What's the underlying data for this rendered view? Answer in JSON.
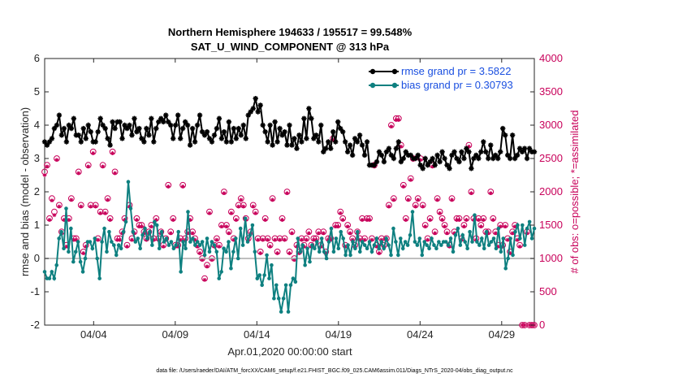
{
  "chart_data": {
    "type": "line",
    "title_line1": "Northern Hemisphere 194633 / 195517 = 99.548%",
    "title_line2": "SAT_U_WIND_COMPONENT @ 313 hPa",
    "xlabel": "Apr.01,2020 00:00:00 start",
    "ylabel_left": "rmse and bias (model - observation)",
    "ylabel_right": "# of obs: o=possible; *=assimilated",
    "xlim": [
      1,
      31
    ],
    "ylim_left": [
      -2,
      6
    ],
    "ylim_right": [
      0,
      4000
    ],
    "x_ticks": [
      {
        "x": 4,
        "label": "04/04"
      },
      {
        "x": 9,
        "label": "04/09"
      },
      {
        "x": 14,
        "label": "04/14"
      },
      {
        "x": 19,
        "label": "04/19"
      },
      {
        "x": 24,
        "label": "04/24"
      },
      {
        "x": 29,
        "label": "04/29"
      }
    ],
    "y_ticks_left": [
      "-2",
      "-1",
      "0",
      "1",
      "2",
      "3",
      "4",
      "5",
      "6"
    ],
    "y_ticks_right": [
      "0",
      "500",
      "1000",
      "1500",
      "2000",
      "2500",
      "3000",
      "3500",
      "4000"
    ],
    "zero_line": 0,
    "legend": {
      "location": "top-right",
      "entries": [
        "rmse grand pr = 3.5822",
        "bias grand pr = 0.30793"
      ]
    },
    "series": [
      {
        "name": "rmse grand pr = 3.5822",
        "color": "#000000",
        "marker": "star",
        "values": [
          3.5,
          3.4,
          3.5,
          3.6,
          3.9,
          4.0,
          4.3,
          3.7,
          3.9,
          3.5,
          4.0,
          3.9,
          4.2,
          3.7,
          3.7,
          3.5,
          3.9,
          3.6,
          4.0,
          3.8,
          3.5,
          3.5,
          3.8,
          4.2,
          4.0,
          3.9,
          3.6,
          3.4,
          4.1,
          3.9,
          4.1,
          4.1,
          3.6,
          4.0,
          3.9,
          4.0,
          3.7,
          4.2,
          3.8,
          3.9,
          3.6,
          3.5,
          3.9,
          3.7,
          4.2,
          3.5,
          3.9,
          4.1,
          4.2,
          4.1,
          4.3,
          4.1,
          4.0,
          3.6,
          4.0,
          4.3,
          3.6,
          3.9,
          4.1,
          4.0,
          3.4,
          3.9,
          3.5,
          4.0,
          4.3,
          3.8,
          3.7,
          3.8,
          3.6,
          3.5,
          3.7,
          3.9,
          4.2,
          3.6,
          3.8,
          3.5,
          4.1,
          3.5,
          3.9,
          3.6,
          3.9,
          3.7,
          4.0,
          3.6,
          4.3,
          4.4,
          4.5,
          4.8,
          4.4,
          4.6,
          4.0,
          3.8,
          3.5,
          4.0,
          3.4,
          4.1,
          3.5,
          3.9,
          3.7,
          3.8,
          3.4,
          4.0,
          3.4,
          3.6,
          3.3,
          3.7,
          3.5,
          4.2,
          3.6,
          4.5,
          4.2,
          3.6,
          3.7,
          3.5,
          4.0,
          3.2,
          3.3,
          3.5,
          3.3,
          3.8,
          3.5,
          4.1,
          3.9,
          3.8,
          3.5,
          3.2,
          3.4,
          3.1,
          3.6,
          3.5,
          3.7,
          3.4,
          3.1,
          3.5,
          2.8,
          2.8,
          2.8,
          2.9,
          3.2,
          3.1,
          2.9,
          3.2,
          3.3,
          3.1,
          3.0,
          3.3,
          3.5,
          2.9,
          3.0,
          3.2,
          3.1,
          3.1,
          3.0,
          3.0,
          3.1,
          2.8,
          2.7,
          3.0,
          2.8,
          2.9,
          3.0,
          2.8,
          3.1,
          2.9,
          3.2,
          3.0,
          2.8,
          2.7,
          3.1,
          3.2,
          3.0,
          2.9,
          3.2,
          3.0,
          3.3,
          3.2,
          2.7,
          3.0,
          3.1,
          3.0,
          3.2,
          3.5,
          3.2,
          3.0,
          3.4,
          3.0,
          3.1,
          3.0,
          3.2,
          3.9,
          3.7,
          3.1,
          3.0,
          3.7,
          3.0,
          3.1,
          3.3,
          3.2,
          3.3,
          3.0,
          3.3,
          3.2,
          3.2
        ]
      },
      {
        "name": "bias grand pr = 0.30793",
        "color": "#0e8080",
        "marker": "dot",
        "values": [
          -0.4,
          -0.6,
          -0.6,
          -0.4,
          -0.6,
          -0.2,
          0.6,
          0.8,
          0.3,
          1.5,
          0.2,
          0.9,
          -0.1,
          0.2,
          0.5,
          -0.1,
          -0.4,
          0.0,
          0.5,
          0.5,
          0.3,
          0.6,
          0.0,
          -0.6,
          0.5,
          0.9,
          0.2,
          0.8,
          0.5,
          0.4,
          0.1,
          0.4,
          0.3,
          0.8,
          1.1,
          2.3,
          1.5,
          0.8,
          0.5,
          0.6,
          0.3,
          0.7,
          0.9,
          0.6,
          0.8,
          0.4,
          1.1,
          1.0,
          0.3,
          0.8,
          0.5,
          0.6,
          0.4,
          0.5,
          0.3,
          0.4,
          0.8,
          -0.4,
          0.5,
          0.3,
          1.4,
          0.5,
          0.6,
          0.4,
          0.5,
          0.4,
          0.5,
          0.1,
          0.6,
          0.2,
          0.5,
          0.4,
          0.2,
          -0.6,
          -0.4,
          0.3,
          0.2,
          0.5,
          -0.3,
          0.2,
          0.6,
          0.0,
          0.9,
          0.4,
          1.2,
          0.5,
          0.7,
          1.0,
          0.2,
          -0.6,
          -0.5,
          -0.8,
          -0.5,
          0.1,
          -0.6,
          -0.2,
          -1.2,
          -0.8,
          -1.2,
          -1.6,
          -1.2,
          -0.8,
          -1.6,
          -0.8,
          -0.6,
          -0.7,
          0.6,
          0.2,
          0.4,
          -0.2,
          0.3,
          -0.1,
          0.4,
          0.3,
          0.5,
          0.2,
          0.6,
          0.2,
          0.0,
          0.5,
          0.9,
          0.2,
          0.6,
          0.3,
          0.8,
          0.6,
          0.1,
          0.4,
          0.1,
          0.5,
          0.3,
          0.8,
          0.2,
          0.5,
          0.4,
          0.3,
          0.5,
          0.2,
          0.4,
          0.6,
          0.3,
          0.5,
          0.3,
          0.6,
          0.4,
          0.1,
          0.9,
          0.5,
          0.1,
          0.6,
          0.3,
          0.5,
          0.4,
          0.7,
          1.4,
          0.5,
          0.4,
          0.6,
          0.1,
          0.5,
          0.4,
          0.3,
          0.6,
          0.4,
          0.3,
          0.5,
          0.4,
          0.5,
          0.5,
          0.4,
          0.6,
          0.2,
          0.7,
          0.9,
          0.4,
          0.7,
          0.5,
          0.3,
          0.8,
          0.5,
          1.3,
          0.5,
          0.4,
          0.6,
          0.3,
          0.8,
          0.4,
          0.5,
          0.6,
          0.3,
          0.9,
          0.2,
          0.6,
          -0.3,
          0.0,
          0.6,
          0.1,
          0.8,
          1.0,
          0.6,
          1.0,
          0.4,
          0.9,
          1.1,
          0.6,
          0.9
        ]
      }
    ],
    "obs_possible": {
      "name": "# of obs possible",
      "color": "#c8005a",
      "marker": "circle",
      "values": [
        2300,
        2400,
        1600,
        1900,
        1700,
        2500,
        1800,
        1400,
        1600,
        1200,
        1600,
        1900,
        1300,
        1300,
        2300,
        1800,
        1100,
        1200,
        2400,
        1800,
        2600,
        1800,
        1300,
        1700,
        2400,
        1700,
        1900,
        1600,
        2600,
        2300,
        1300,
        1300,
        1400,
        1600,
        1200,
        1800,
        1300,
        1400,
        1600,
        1500,
        1500,
        1400,
        1300,
        1400,
        1500,
        1300,
        1600,
        1300,
        1400,
        1200,
        1300,
        2100,
        1400,
        1600,
        1200,
        1200,
        1300,
        2100,
        1300,
        1400,
        1600,
        1400,
        1300,
        1200,
        1100,
        1000,
        700,
        900,
        1700,
        1000,
        1200,
        1300,
        1200,
        1500,
        2000,
        1500,
        1400,
        1700,
        1300,
        1600,
        1800,
        1900,
        1800,
        1600,
        1300,
        1400,
        1800,
        1700,
        1300,
        1100,
        1300,
        1600,
        1300,
        1200,
        1900,
        1300,
        1100,
        1300,
        1600,
        1300,
        2000,
        1100,
        1400,
        1000,
        1200,
        1100,
        1300,
        1200,
        1300,
        1400,
        1200,
        1300,
        1300,
        1400,
        1200,
        1400,
        1100,
        1300,
        1300,
        2800,
        1500,
        1500,
        1700,
        1600,
        1200,
        1500,
        1400,
        1300,
        1200,
        1400,
        1300,
        1600,
        1300,
        1600,
        1600,
        1300,
        2400,
        1200,
        1100,
        1300,
        1200,
        1300,
        1800,
        3000,
        1900,
        3100,
        3100,
        2700,
        2100,
        1600,
        1900,
        2200,
        2500,
        1800,
        1900,
        2500,
        1800,
        1500,
        1300,
        1600,
        2400,
        1400,
        1900,
        1700,
        1600,
        1500,
        1400,
        1200,
        1900,
        1400,
        1600,
        1600,
        1300,
        1500,
        1600,
        2700,
        2000,
        1600,
        1300,
        1600,
        1500,
        1600,
        1400,
        1400,
        2000,
        1600,
        1400,
        1200,
        1500,
        1200,
        1500,
        1300,
        1100,
        1400,
        1500,
        1300,
        1200,
        0,
        0,
        1400,
        0,
        0,
        0
      ]
    },
    "obs_assimilated": {
      "name": "# of obs assimilated",
      "color": "#c8005a",
      "marker": "star",
      "values": [
        2250,
        2380,
        1580,
        1870,
        1650,
        2480,
        1780,
        1380,
        1580,
        1180,
        1580,
        1880,
        1280,
        1280,
        2280,
        1780,
        1080,
        1180,
        2380,
        1780,
        2580,
        1780,
        1280,
        1680,
        2380,
        1680,
        1880,
        1580,
        2580,
        2280,
        1280,
        1280,
        1380,
        1580,
        1180,
        1780,
        1280,
        1380,
        1580,
        1480,
        1480,
        1380,
        1280,
        1380,
        1480,
        1280,
        1580,
        1280,
        1380,
        1180,
        1280,
        2080,
        1380,
        1580,
        1180,
        1180,
        1280,
        2080,
        1280,
        1380,
        1580,
        1380,
        1280,
        1180,
        1080,
        980,
        680,
        880,
        1680,
        980,
        1180,
        1280,
        1180,
        1480,
        1980,
        1480,
        1380,
        1680,
        1280,
        1580,
        1780,
        1880,
        1780,
        1580,
        1280,
        1380,
        1780,
        1680,
        1280,
        1080,
        1280,
        1580,
        1280,
        1180,
        1880,
        1280,
        1080,
        1280,
        1580,
        1280,
        1980,
        1080,
        1380,
        980,
        1180,
        1080,
        1280,
        1180,
        1280,
        1380,
        1180,
        1280,
        1280,
        1380,
        1180,
        1380,
        1080,
        1280,
        1280,
        2780,
        1480,
        1480,
        1680,
        1580,
        1180,
        1480,
        1380,
        1280,
        1180,
        1380,
        1280,
        1580,
        1280,
        1580,
        1580,
        1280,
        2380,
        1180,
        1080,
        1280,
        1180,
        1280,
        1780,
        2980,
        1880,
        3080,
        3080,
        2680,
        2080,
        1580,
        1880,
        2180,
        2480,
        1780,
        1880,
        2480,
        1780,
        1480,
        1280,
        1580,
        2380,
        1380,
        1880,
        1680,
        1580,
        1480,
        1380,
        1180,
        1880,
        1380,
        1580,
        1580,
        1280,
        1480,
        1580,
        2680,
        1980,
        1580,
        1280,
        1580,
        1480,
        1580,
        1380,
        1380,
        1980,
        1580,
        1380,
        1180,
        1480,
        1180,
        1480,
        1280,
        1080,
        1380,
        1480,
        1280,
        1180,
        0,
        0,
        1380,
        0,
        0,
        0
      ]
    },
    "footer": "data file: /Users/raeder/DAI/ATM_forcXX/CAM6_setup/f.e21.FHIST_BGC.f09_025.CAM6assim.011/Diags_NTrS_2020-04/obs_diag_output.nc"
  }
}
